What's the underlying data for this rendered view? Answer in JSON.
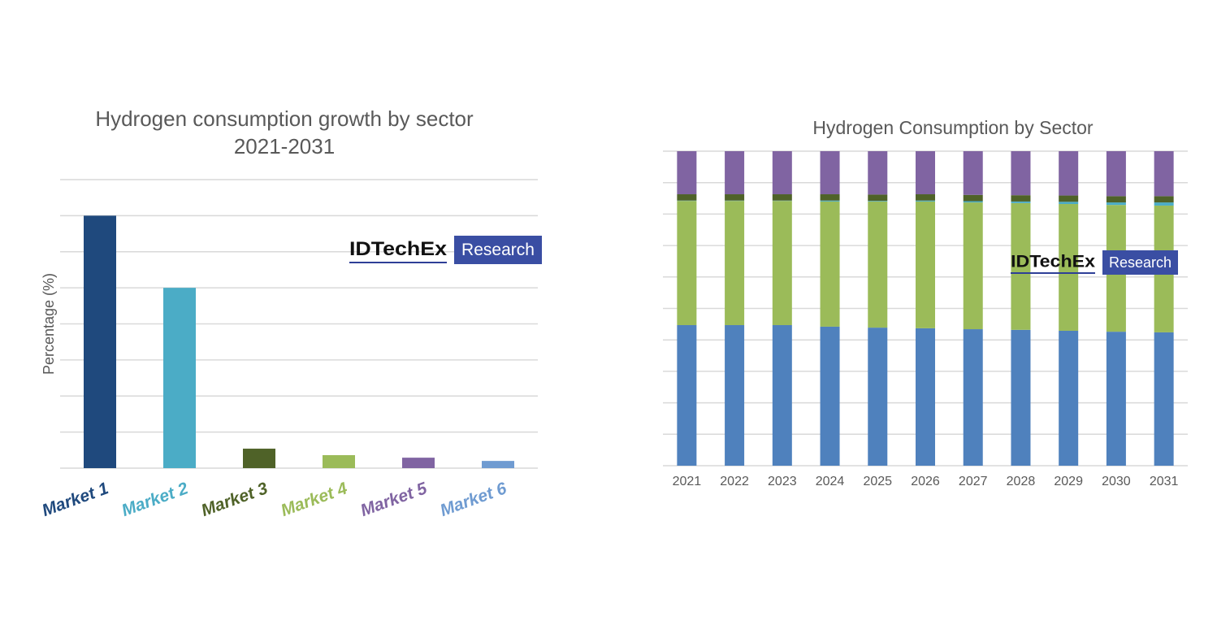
{
  "chart_data": [
    {
      "type": "bar",
      "title": "Hydrogen consumption growth by sector",
      "subtitle": "2021-2031",
      "ylabel": "Percentage (%)",
      "categories": [
        "Market 1",
        "Market 2",
        "Market 3",
        "Market 4",
        "Market 5",
        "Market 6"
      ],
      "values": [
        7.0,
        5.0,
        0.54,
        0.36,
        0.29,
        0.2
      ],
      "colors": [
        "#1f497d",
        "#4bacc6",
        "#4f6228",
        "#9bbb59",
        "#8064a2",
        "#6f9bd1"
      ],
      "ylim": [
        0,
        8
      ],
      "yticks": [
        0,
        1,
        2,
        3,
        4,
        5,
        6,
        7,
        8
      ],
      "grid": true,
      "logo": {
        "brand": "IDTechEx",
        "badge": "Research"
      }
    },
    {
      "type": "bar",
      "stacked": true,
      "title": "Hydrogen Consumption by Sector",
      "categories": [
        "2021",
        "2022",
        "2023",
        "2024",
        "2025",
        "2026",
        "2027",
        "2028",
        "2029",
        "2030",
        "2031"
      ],
      "series": [
        {
          "color": "#4f81bd",
          "values": [
            44.7,
            44.7,
            44.7,
            44.2,
            43.9,
            43.7,
            43.4,
            43.2,
            42.9,
            42.6,
            42.4
          ]
        },
        {
          "color": "#9bbb59",
          "values": [
            39.5,
            39.5,
            39.5,
            39.8,
            40.1,
            40.3,
            40.3,
            40.3,
            40.3,
            40.3,
            40.3
          ]
        },
        {
          "color": "#4bacc6",
          "values": [
            0.1,
            0.1,
            0.1,
            0.3,
            0.2,
            0.3,
            0.4,
            0.5,
            0.7,
            0.8,
            1.0
          ]
        },
        {
          "color": "#4f6228",
          "values": [
            2.0,
            2.0,
            2.0,
            2.0,
            2.0,
            2.0,
            2.0,
            2.0,
            2.0,
            2.0,
            2.0
          ]
        },
        {
          "color": "#8064a2",
          "values": [
            13.7,
            13.7,
            13.7,
            13.7,
            13.8,
            13.7,
            13.9,
            14.0,
            14.1,
            14.3,
            14.3
          ]
        }
      ],
      "ylim": [
        0,
        100
      ],
      "yticks": [
        0,
        10,
        20,
        30,
        40,
        50,
        60,
        70,
        80,
        90,
        100
      ],
      "grid": true,
      "logo": {
        "brand": "IDTechEx",
        "badge": "Research"
      }
    }
  ]
}
